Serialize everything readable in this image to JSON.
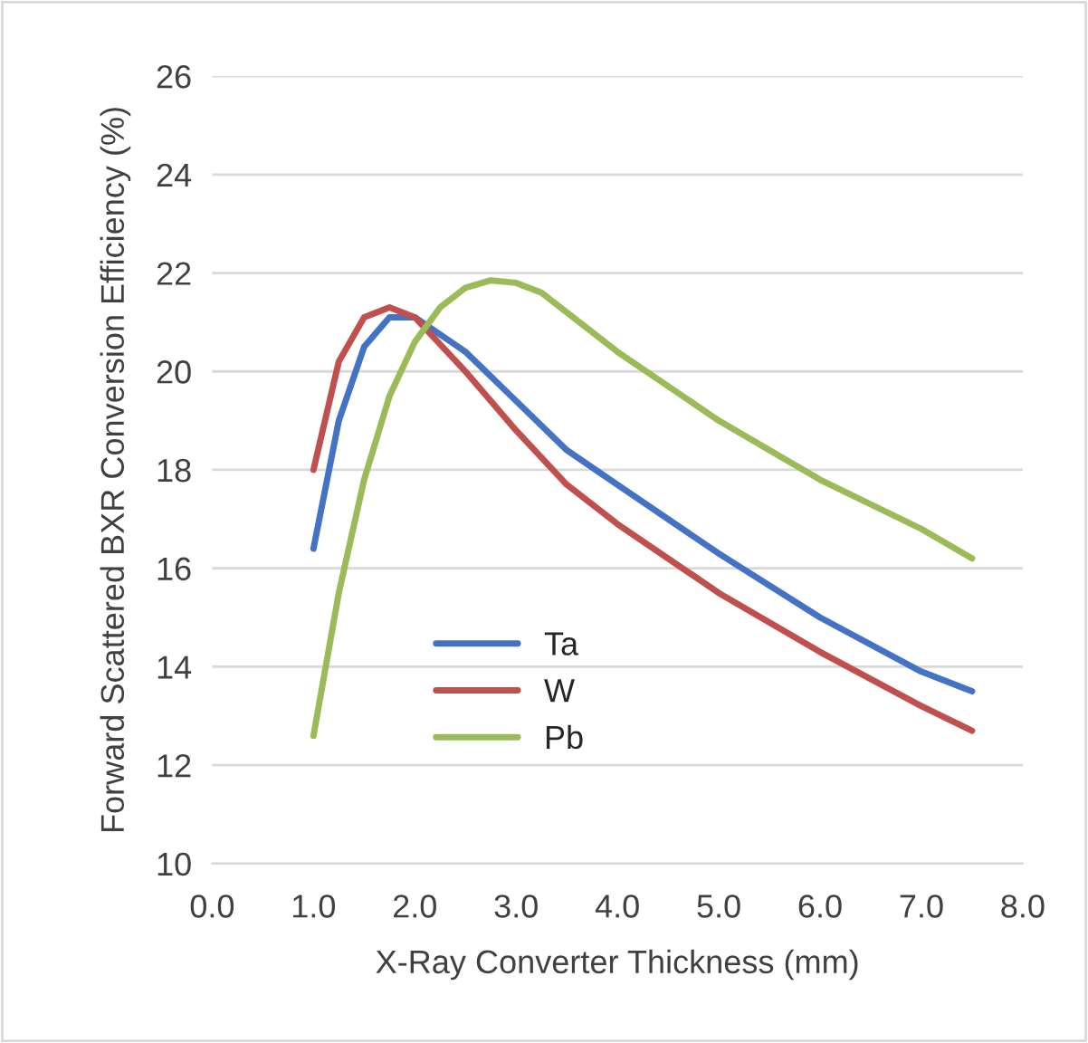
{
  "chart_data": {
    "type": "line",
    "xlabel": "X-Ray Converter Thickness (mm)",
    "ylabel": "Forward Scattered BXR Conversion Efficiency (%)",
    "xlim": [
      0,
      8
    ],
    "xticks": [
      {
        "value": 0,
        "label": "0.0"
      },
      {
        "value": 1,
        "label": "1.0"
      },
      {
        "value": 2,
        "label": "2.0"
      },
      {
        "value": 3,
        "label": "3.0"
      },
      {
        "value": 4,
        "label": "4.0"
      },
      {
        "value": 5,
        "label": "5.0"
      },
      {
        "value": 6,
        "label": "6.0"
      },
      {
        "value": 7,
        "label": "7.0"
      },
      {
        "value": 8,
        "label": "8.0"
      }
    ],
    "ylim": [
      10,
      26
    ],
    "yticks": [
      10,
      12,
      14,
      16,
      18,
      20,
      22,
      24,
      26
    ],
    "grid": "y",
    "legend": "bottom left",
    "marker": "none",
    "line_style": "solid",
    "series": [
      {
        "name": "Ta",
        "color": "#4472c4",
        "x": [
          1,
          1.25,
          1.5,
          1.75,
          2,
          2.5,
          3,
          3.5,
          4,
          5,
          6,
          7,
          7.5
        ],
        "values": [
          16.4,
          19.0,
          20.5,
          21.1,
          21.1,
          20.4,
          19.4,
          18.4,
          17.7,
          16.3,
          15.0,
          13.9,
          13.5
        ]
      },
      {
        "name": "W",
        "color": "#c0504d",
        "x": [
          1,
          1.25,
          1.5,
          1.75,
          2,
          2.5,
          3,
          3.5,
          4,
          5,
          6,
          7,
          7.5
        ],
        "values": [
          18.0,
          20.2,
          21.1,
          21.3,
          21.1,
          20.0,
          18.8,
          17.7,
          16.9,
          15.5,
          14.3,
          13.2,
          12.7
        ]
      },
      {
        "name": "Pb",
        "color": "#9bbb59",
        "x": [
          1,
          1.25,
          1.5,
          1.75,
          2,
          2.25,
          2.5,
          2.75,
          3,
          3.25,
          3.5,
          4,
          5,
          6,
          7,
          7.5
        ],
        "values": [
          12.6,
          15.5,
          17.8,
          19.5,
          20.6,
          21.3,
          21.7,
          21.85,
          21.8,
          21.6,
          21.2,
          20.4,
          19.0,
          17.8,
          16.8,
          16.2
        ]
      }
    ]
  }
}
